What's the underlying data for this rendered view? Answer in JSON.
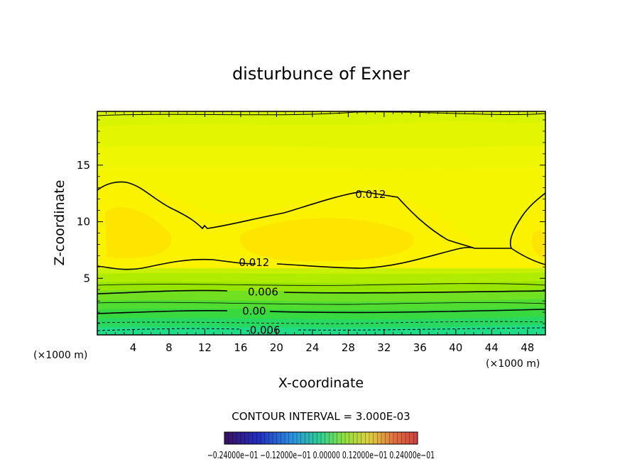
{
  "chart_data": {
    "type": "contour",
    "title": "disturbunce of Exner",
    "xlabel": "X-coordinate",
    "ylabel": "Z-coordinate",
    "x_unit": "(×1000 m)",
    "y_unit": "(×1000 m)",
    "xlim": [
      0,
      50
    ],
    "ylim": [
      0,
      19.75
    ],
    "xticks": [
      4,
      8,
      12,
      16,
      20,
      24,
      28,
      32,
      36,
      40,
      44,
      48
    ],
    "yticks": [
      5,
      10,
      15
    ],
    "contour_interval_text": "CONTOUR INTERVAL = 3.000E-03",
    "contour_labels": [
      {
        "text": "0.012",
        "x": 30.5,
        "z": 12.4
      },
      {
        "text": "0.012",
        "x": 17.5,
        "z": 6.4
      },
      {
        "text": "0.006",
        "x": 18.5,
        "z": 3.8
      },
      {
        "text": "0.00",
        "x": 17.5,
        "z": 2.1
      },
      {
        "text": "-0.006",
        "x": 18.5,
        "z": 0.4
      }
    ],
    "colorbar": {
      "range": [
        -0.024,
        0.024
      ],
      "labels_text": "−0.24000e−01  −0.12000e−01  0.00000  0.12000e−01  0.24000e−01"
    },
    "grid": false
  }
}
